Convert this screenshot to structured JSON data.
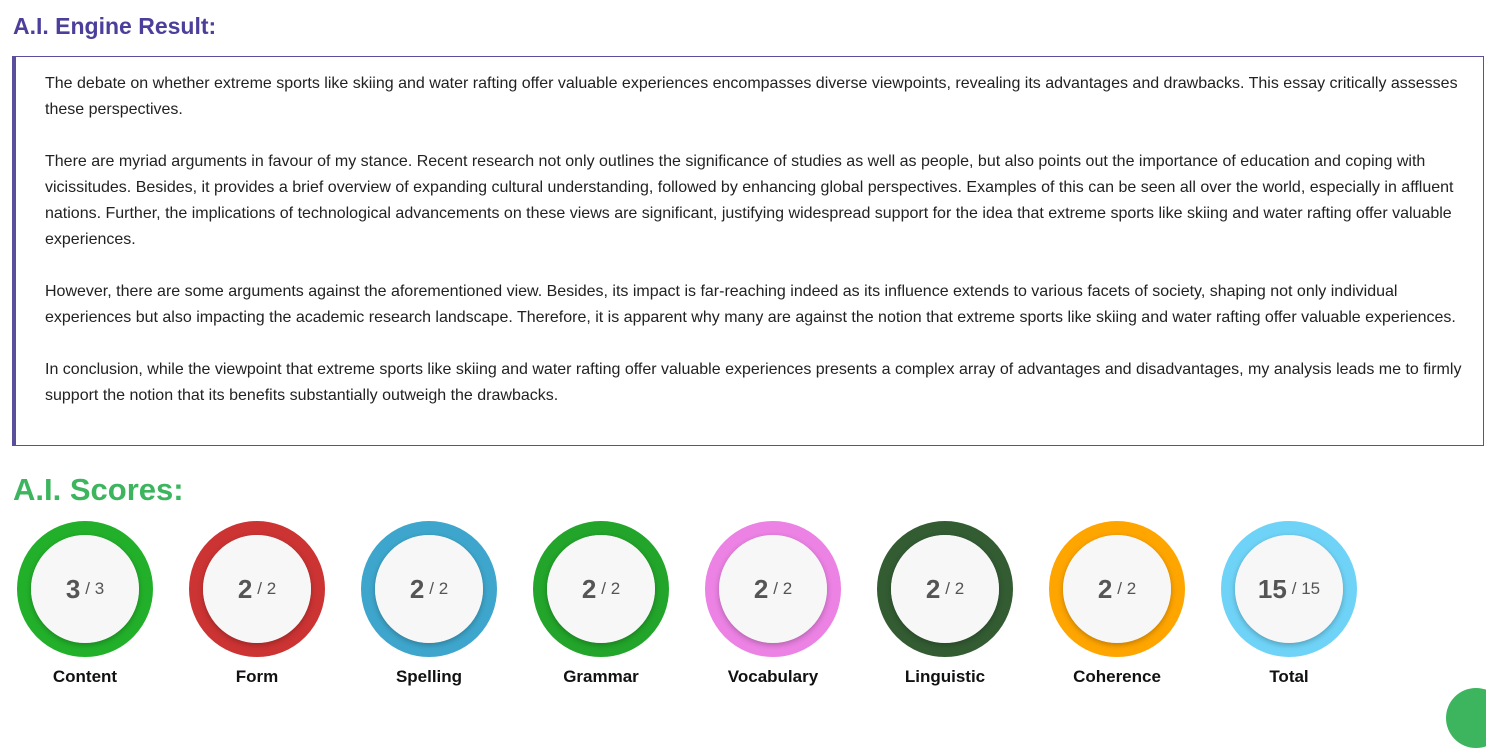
{
  "result": {
    "title": "A.I. Engine Result:",
    "paragraphs": [
      "The debate on whether extreme sports like skiing and water rafting offer valuable experiences encompasses diverse viewpoints, revealing its advantages and drawbacks. This essay critically assesses these perspectives.",
      "There are myriad arguments in favour of my stance. Recent research not only outlines the significance of studies as well as people, but also points out the importance of education and coping with vicissitudes. Besides, it provides a brief overview of expanding cultural understanding, followed by enhancing global perspectives. Examples of this can be seen all over the world, especially in affluent nations. Further, the implications of technological advancements on these views are significant, justifying widespread support for the idea that extreme sports like skiing and water rafting offer valuable experiences.",
      "However, there are some arguments against the aforementioned view. Besides, its impact is far-reaching indeed as its influence extends to various facets of society, shaping not only individual experiences but also impacting the academic research landscape. Therefore, it is apparent why many are against the notion that extreme sports like skiing and water rafting offer valuable experiences.",
      "In conclusion, while the viewpoint that extreme sports like skiing and water rafting offer valuable experiences presents a complex array of advantages and disadvantages, my analysis leads me to firmly support the notion that its benefits substantially outweigh the drawbacks."
    ]
  },
  "scores": {
    "title": "A.I. Scores:",
    "items": [
      {
        "label": "Content",
        "score": "3",
        "out_of": "/ 3",
        "color": "#22b02a"
      },
      {
        "label": "Form",
        "score": "2",
        "out_of": "/ 2",
        "color": "#cc3333"
      },
      {
        "label": "Spelling",
        "score": "2",
        "out_of": "/ 2",
        "color": "#3ea6cc"
      },
      {
        "label": "Grammar",
        "score": "2",
        "out_of": "/ 2",
        "color": "#22a52a"
      },
      {
        "label": "Vocabulary",
        "score": "2",
        "out_of": "/ 2",
        "color": "#ec82e4"
      },
      {
        "label": "Linguistic",
        "score": "2",
        "out_of": "/ 2",
        "color": "#335c33"
      },
      {
        "label": "Coherence",
        "score": "2",
        "out_of": "/ 2",
        "color": "#ffa500"
      },
      {
        "label": "Total",
        "score": "15",
        "out_of": "/ 15",
        "color": "#6fd3f7"
      }
    ]
  }
}
